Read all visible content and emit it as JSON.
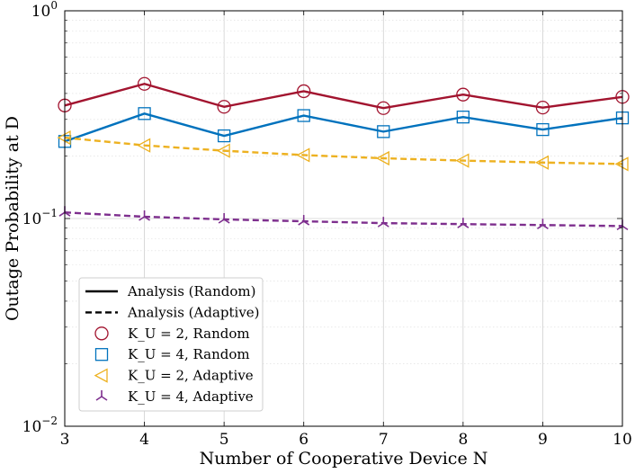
{
  "chart_data": {
    "type": "line",
    "xlabel": "Number of Cooperative Device N",
    "ylabel": "Outage Probability at D",
    "x": [
      3,
      4,
      5,
      6,
      7,
      8,
      9,
      10
    ],
    "xlim": [
      3,
      10
    ],
    "ylim": [
      0.01,
      1
    ],
    "yscale": "log",
    "xticks": [
      "3",
      "4",
      "5",
      "6",
      "7",
      "8",
      "9",
      "10"
    ],
    "yticks": [
      {
        "value": 0.01,
        "base": "10",
        "exp": "−2"
      },
      {
        "value": 0.1,
        "base": "10",
        "exp": "−1"
      },
      {
        "value": 1,
        "base": "10",
        "exp": "0"
      }
    ],
    "grid": true,
    "legend_position": "bottom-left",
    "legend": [
      {
        "label": "Analysis (Random)",
        "kind": "line-solid"
      },
      {
        "label": "Analysis (Adaptive)",
        "kind": "line-dashed"
      },
      {
        "label": "K_U = 2, Random",
        "kind": "marker",
        "series": 0
      },
      {
        "label": "K_U = 4, Random",
        "kind": "marker",
        "series": 1
      },
      {
        "label": "K_U = 2, Adaptive",
        "kind": "marker",
        "series": 2
      },
      {
        "label": "K_U = 4, Adaptive",
        "kind": "marker",
        "series": 3
      }
    ],
    "series": [
      {
        "name": "K_U = 2, Random",
        "color": "#A2142F",
        "marker": "circle",
        "dash": false,
        "values": [
          0.35,
          0.445,
          0.345,
          0.41,
          0.34,
          0.395,
          0.342,
          0.385
        ]
      },
      {
        "name": "K_U = 4, Random",
        "color": "#0072BD",
        "marker": "square",
        "dash": false,
        "values": [
          0.235,
          0.32,
          0.25,
          0.313,
          0.262,
          0.308,
          0.268,
          0.305
        ]
      },
      {
        "name": "K_U = 2, Adaptive",
        "color": "#EDB120",
        "marker": "triangle-left",
        "dash": true,
        "values": [
          0.245,
          0.225,
          0.212,
          0.202,
          0.195,
          0.19,
          0.186,
          0.183
        ]
      },
      {
        "name": "K_U = 4, Adaptive",
        "color": "#7E2F8E",
        "marker": "tri-down",
        "dash": true,
        "values": [
          0.107,
          0.102,
          0.099,
          0.097,
          0.095,
          0.094,
          0.093,
          0.092
        ]
      }
    ]
  }
}
